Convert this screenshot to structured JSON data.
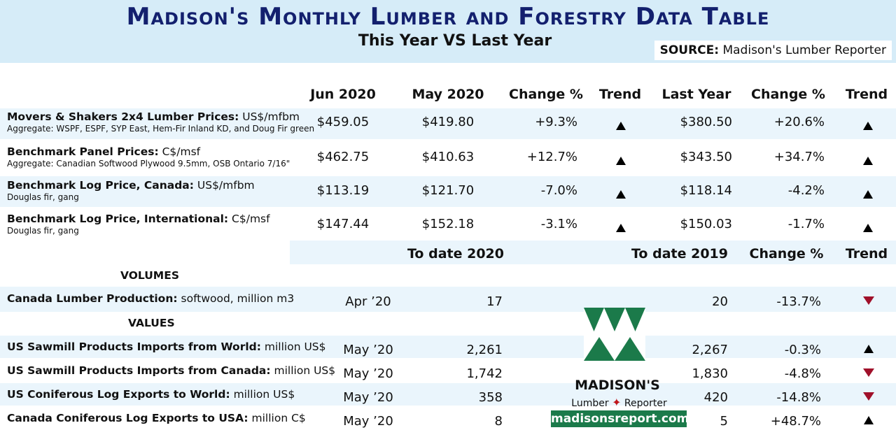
{
  "header": {
    "title": "Madison's Monthly Lumber and Forestry Data Table",
    "subtitle": "This Year VS Last Year",
    "source_label": "SOURCE:",
    "source_value": "Madison's Lumber Reporter"
  },
  "price_headers": {
    "current": "Jun 2020",
    "previous": "May 2020",
    "change": "Change %",
    "trend": "Trend",
    "last_year": "Last Year",
    "change_ly": "Change %",
    "trend_ly": "Trend"
  },
  "price_rows": [
    {
      "label_bold": "Movers & Shakers 2x4 Lumber Prices:",
      "label_unit": " US$/mfbm",
      "sublabel": "Aggregate: WSPF, ESPF, SYP East, Hem-Fir Inland KD, and Doug Fir green",
      "current": "$459.05",
      "previous": "$419.80",
      "change": "+9.3%",
      "trend": "up",
      "last_year": "$380.50",
      "change_ly": "+20.6%",
      "trend_ly": "up"
    },
    {
      "label_bold": "Benchmark Panel Prices:",
      "label_unit": " C$/msf",
      "sublabel": "Aggregate: Canadian Softwood Plywood 9.5mm, OSB Ontario 7/16\"",
      "current": "$462.75",
      "previous": "$410.63",
      "change": "+12.7%",
      "trend": "up",
      "last_year": "$343.50",
      "change_ly": "+34.7%",
      "trend_ly": "up"
    },
    {
      "label_bold": "Benchmark Log Price, Canada:",
      "label_unit": " US$/mfbm",
      "sublabel": "Douglas fir, gang",
      "current": "$113.19",
      "previous": "$121.70",
      "change": "-7.0%",
      "trend": "up",
      "last_year": "$118.14",
      "change_ly": "-4.2%",
      "trend_ly": "up"
    },
    {
      "label_bold": "Benchmark Log Price, International:",
      "label_unit": " C$/msf",
      "sublabel": "Douglas fir, gang",
      "current": "$147.44",
      "previous": "$152.18",
      "change": "-3.1%",
      "trend": "up",
      "last_year": "$150.03",
      "change_ly": "-1.7%",
      "trend_ly": "up"
    }
  ],
  "todate_headers": {
    "to_date_current": "To date 2020",
    "to_date_last": "To date 2019",
    "change": "Change %",
    "trend": "Trend"
  },
  "sections": {
    "volumes": "VOLUMES",
    "values": "VALUES"
  },
  "volume_rows": [
    {
      "label_bold": "Canada Lumber Production:",
      "label_unit": " softwood, million m3",
      "period": "Apr ’20",
      "to_date_current": "17",
      "to_date_last": "20",
      "change": "-13.7%",
      "trend": "down"
    }
  ],
  "value_rows": [
    {
      "label_bold": "US Sawmill Products Imports from World:",
      "label_unit": " million US$",
      "period": "May ’20",
      "to_date_current": "2,261",
      "to_date_last": "2,267",
      "change": "-0.3%",
      "trend": "up"
    },
    {
      "label_bold": "US Sawmill Products Imports from Canada:",
      "label_unit": " million US$",
      "period": "May ’20",
      "to_date_current": "1,742",
      "to_date_last": "1,830",
      "change": "-4.8%",
      "trend": "down"
    },
    {
      "label_bold": "US Coniferous Log Exports to World:",
      "label_unit": " million US$",
      "period": "May ’20",
      "to_date_current": "358",
      "to_date_last": "420",
      "change": "-14.8%",
      "trend": "down"
    },
    {
      "label_bold": "Canada Coniferous Log Exports to USA:",
      "label_unit": " million C$",
      "period": "May ’20",
      "to_date_current": "8",
      "to_date_last": "5",
      "change": "+48.7%",
      "trend": "up"
    }
  ],
  "logo": {
    "brand_name": "MADISON'S",
    "brand_word1": "Lumber",
    "brand_word2": "Reporter",
    "website": "madisonsreport.com"
  },
  "colors": {
    "title": "#13206e",
    "band": "#eaf5fc",
    "header_bg": "#d6ecf8",
    "trend_up": "#000000",
    "trend_down": "#a0102a",
    "logo_green": "#1b7a4a"
  }
}
